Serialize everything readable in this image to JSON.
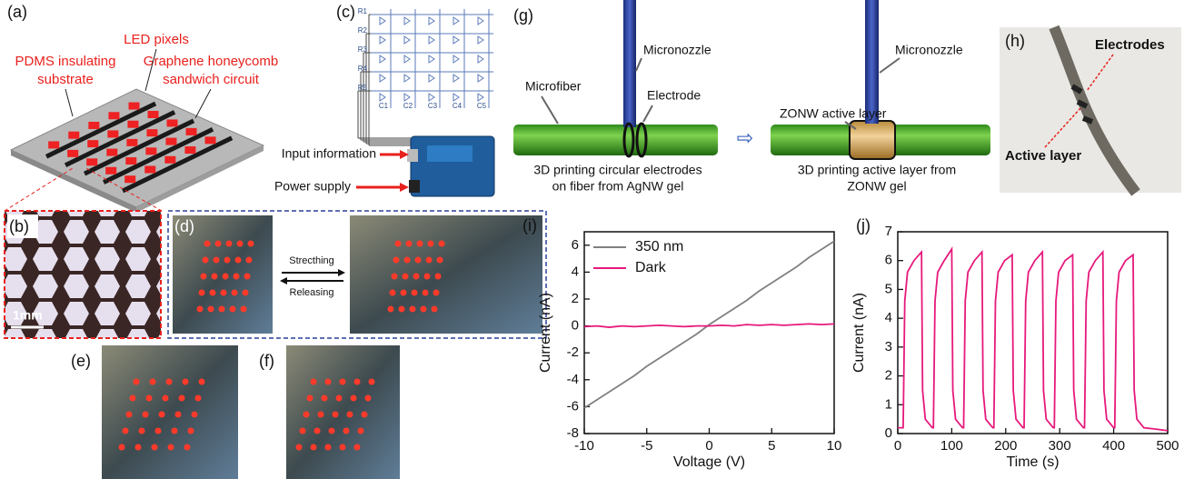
{
  "figure": {
    "a": {
      "label": "(a)",
      "substrate": [
        "PDMS insulating",
        "substrate"
      ],
      "pixels": "LED pixels",
      "circuit": [
        "Graphene honeycomb",
        "sandwich circuit"
      ]
    },
    "b": {
      "label": "(b)",
      "scale": "1mm"
    },
    "c": {
      "label": "(c)",
      "rows": [
        "R1",
        "R2",
        "R3",
        "R4",
        "R5"
      ],
      "cols": [
        "C1",
        "C2",
        "C3",
        "C4",
        "C5"
      ],
      "input": "Input information",
      "power": "Power supply"
    },
    "d": {
      "label": "(d)",
      "stretch": "Strecthing",
      "release": "Releasing"
    },
    "e": {
      "label": "(e)"
    },
    "f": {
      "label": "(f)"
    },
    "g": {
      "label": "(g)",
      "nozzle_left": "Micronozzle",
      "fiber": "Microfiber",
      "electrode": "Electrode",
      "caption_left": [
        "3D printing circular electrodes",
        "on fiber from AgNW gel"
      ],
      "active": "ZONW active layer",
      "nozzle_right": "Micronozzle",
      "caption_right": [
        "3D printing active layer from",
        "ZONW gel"
      ]
    },
    "h": {
      "label": "(h)",
      "electrodes": "Electrodes",
      "active": "Active layer"
    }
  },
  "chart_data": [
    {
      "type": "line",
      "label": "(i)",
      "xlabel": "Voltage (V)",
      "ylabel": "Current (nA)",
      "x": [
        -10,
        -9,
        -8,
        -7,
        -6,
        -5,
        -4,
        -3,
        -2,
        -1,
        0,
        1,
        2,
        3,
        4,
        5,
        6,
        7,
        8,
        9,
        10
      ],
      "series": [
        {
          "name": "350 nm",
          "color": "#808080",
          "values": [
            -6.1,
            -5.5,
            -4.9,
            -4.3,
            -3.7,
            -3.0,
            -2.4,
            -1.8,
            -1.2,
            -0.6,
            0.1,
            0.7,
            1.3,
            1.9,
            2.6,
            3.2,
            3.8,
            4.4,
            5.1,
            5.7,
            6.3
          ]
        },
        {
          "name": "Dark",
          "color": "#e6197c",
          "values": [
            -0.05,
            0,
            -0.1,
            0,
            -0.05,
            0,
            0.05,
            0,
            -0.05,
            0,
            0,
            0.05,
            0,
            0.1,
            0.05,
            0.1,
            0.05,
            0.1,
            0.15,
            0.1,
            0.15
          ]
        }
      ],
      "xlim": [
        -10,
        10
      ],
      "xticks": [
        -10,
        -5,
        0,
        5,
        10
      ],
      "ylim": [
        -8,
        7
      ],
      "yticks": [
        -8,
        -6,
        -4,
        -2,
        0,
        2,
        4,
        6
      ],
      "legend": "upper left"
    },
    {
      "type": "line",
      "label": "(j)",
      "xlabel": "Time (s)",
      "ylabel": "Current (nA)",
      "x": [
        0,
        10,
        13,
        18,
        30,
        44,
        46,
        51,
        64,
        66,
        69,
        74,
        86,
        100,
        102,
        107,
        120,
        122,
        125,
        130,
        142,
        156,
        158,
        163,
        176,
        178,
        181,
        186,
        198,
        212,
        214,
        219,
        232,
        234,
        237,
        242,
        254,
        268,
        270,
        275,
        288,
        290,
        293,
        298,
        310,
        324,
        326,
        331,
        344,
        346,
        349,
        354,
        366,
        380,
        382,
        387,
        400,
        402,
        405,
        410,
        422,
        436,
        438,
        443,
        456,
        480,
        500
      ],
      "series": [
        {
          "color": "#e6197c",
          "values": [
            0.2,
            0.2,
            4.6,
            5.6,
            6.0,
            6.3,
            1.5,
            0.5,
            0.2,
            0.2,
            4.6,
            5.6,
            6.0,
            6.4,
            1.5,
            0.5,
            0.2,
            0.2,
            4.6,
            5.6,
            6.0,
            6.3,
            1.5,
            0.5,
            0.2,
            0.2,
            4.6,
            5.6,
            6.0,
            6.2,
            1.5,
            0.5,
            0.2,
            0.2,
            4.6,
            5.6,
            6.0,
            6.3,
            1.5,
            0.5,
            0.2,
            0.2,
            4.6,
            5.6,
            6.0,
            6.2,
            1.5,
            0.5,
            0.2,
            0.2,
            4.6,
            5.6,
            6.0,
            6.3,
            1.5,
            0.5,
            0.2,
            0.2,
            4.6,
            5.6,
            6.0,
            6.2,
            1.5,
            0.5,
            0.2,
            0.15,
            0.1
          ]
        }
      ],
      "xlim": [
        0,
        500
      ],
      "xticks": [
        0,
        100,
        200,
        300,
        400,
        500
      ],
      "ylim": [
        0,
        7
      ],
      "yticks": [
        0,
        1,
        2,
        3,
        4,
        5,
        6,
        7
      ]
    }
  ]
}
